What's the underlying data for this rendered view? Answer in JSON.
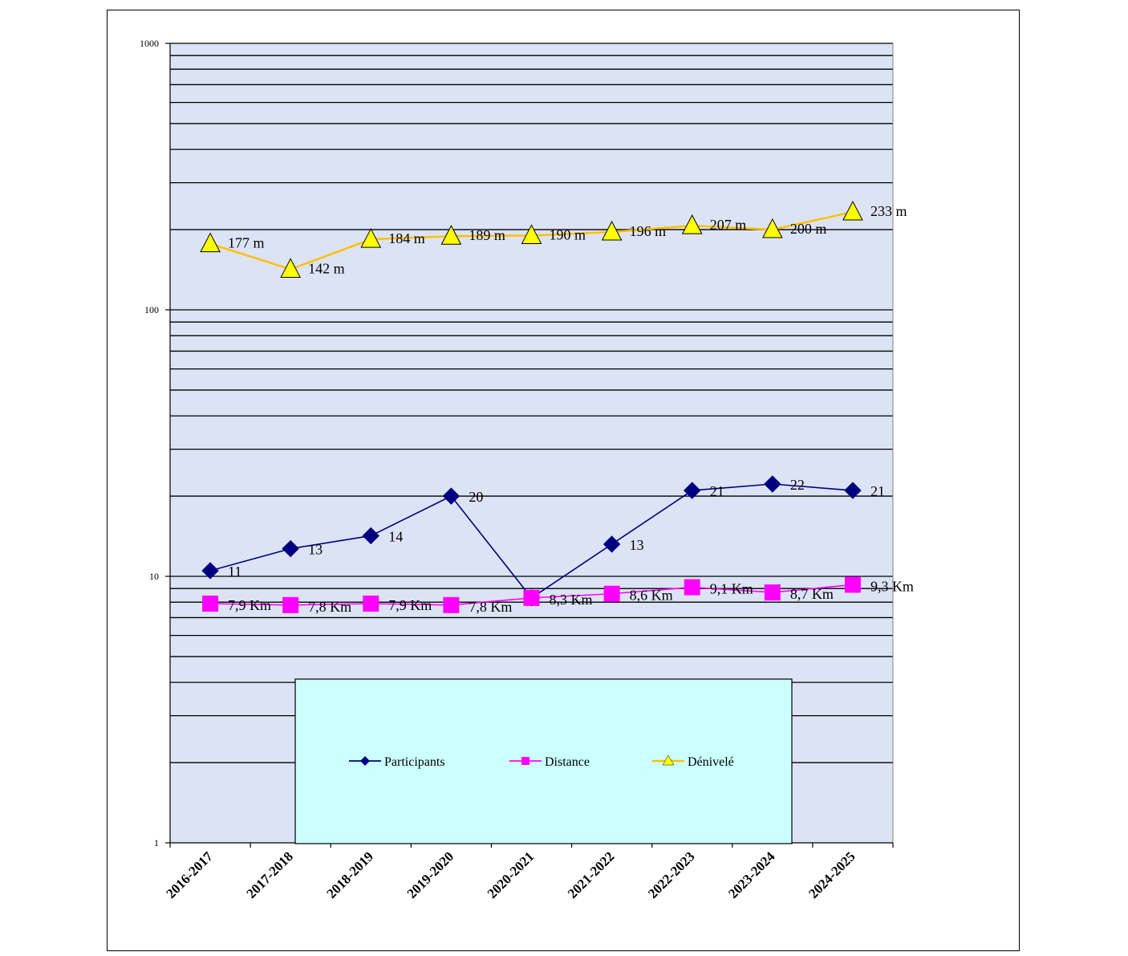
{
  "chart_data": {
    "type": "line",
    "title": "",
    "xlabel": "",
    "ylabel": "",
    "yscale": "log",
    "ylim": [
      1,
      1000
    ],
    "y_ticks": [
      "1",
      "10",
      "100",
      "1000"
    ],
    "grid": true,
    "legend_position": "bottom-center",
    "categories": [
      "2016-2017",
      "2017-2018",
      "2018-2019",
      "2019-2020",
      "2020-2021",
      "2021-2022",
      "2022-2023",
      "2023-2024",
      "2024-2025"
    ],
    "series": [
      {
        "name": "Participants",
        "color": "#000080",
        "marker": "diamond",
        "values": [
          10.5,
          12.7,
          14.2,
          20,
          8.3,
          13.2,
          21,
          22.2,
          21
        ],
        "labels": [
          "11",
          "13",
          "14",
          "20",
          "",
          "13",
          "21",
          "22",
          "21"
        ]
      },
      {
        "name": "Distance",
        "color": "#FF00FF",
        "marker": "square",
        "values": [
          7.9,
          7.8,
          7.9,
          7.8,
          8.3,
          8.6,
          9.1,
          8.7,
          9.3
        ],
        "labels": [
          "7,9 Km",
          "7,8 Km",
          "7,9 Km",
          "7,8 Km",
          "8,3 Km",
          "8,6 Km",
          "9,1 Km",
          "8,7 Km",
          "9,3 Km"
        ]
      },
      {
        "name": "Dénivelé",
        "color": "#FFD700",
        "marker": "triangle",
        "values": [
          177,
          142,
          184,
          189,
          190,
          196,
          207,
          200,
          233
        ],
        "labels": [
          "177 m",
          "142 m",
          "184 m",
          "189 m",
          "190 m",
          "196 m",
          "207 m",
          "200 m",
          "233 m"
        ]
      }
    ],
    "colors": {
      "plot_background": "#DCE3F5",
      "legend_background": "#CCFFFF",
      "gridline": "#000000",
      "denivele_line": "#FFC000",
      "denivele_marker": "#FFFF00"
    }
  }
}
